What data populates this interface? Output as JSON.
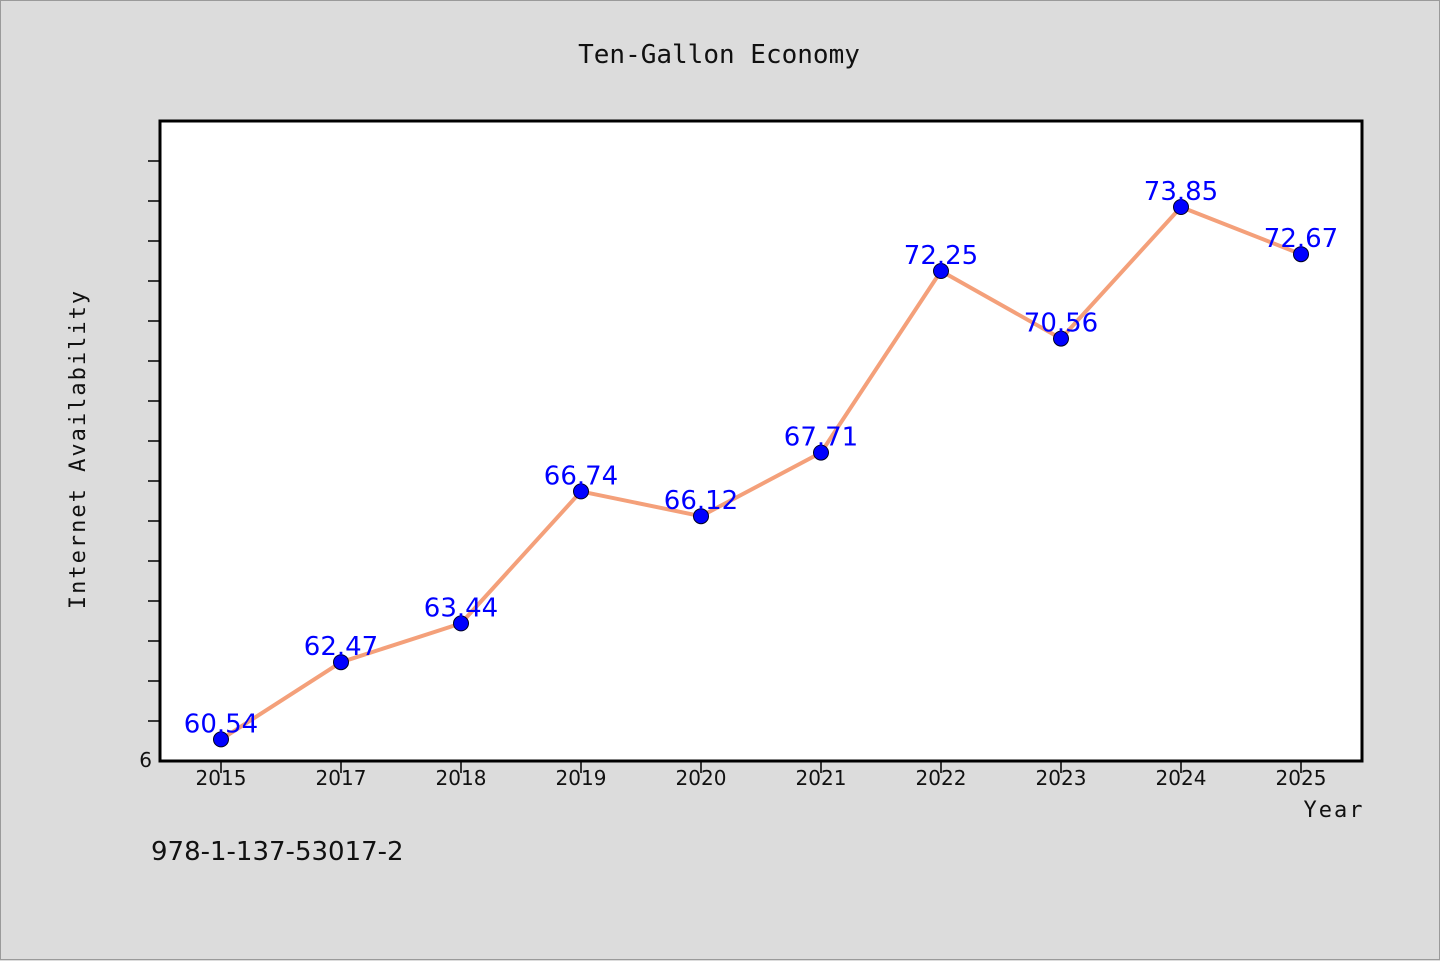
{
  "chart_data": {
    "type": "line",
    "title": "Ten-Gallon Economy",
    "xlabel": "Year",
    "ylabel": "Internet Availability",
    "categories": [
      "2015",
      "2017",
      "2018",
      "2019",
      "2020",
      "2021",
      "2022",
      "2023",
      "2024",
      "2025"
    ],
    "series": [
      {
        "values": [
          60.54,
          62.47,
          63.44,
          66.74,
          66.12,
          67.71,
          72.25,
          70.56,
          73.85,
          72.67
        ],
        "data_labels": [
          "60.54",
          "62.47",
          "63.44",
          "66.74",
          "66.12",
          "67.71",
          "72.25",
          "70.56",
          "73.85",
          "72.67"
        ]
      }
    ],
    "y_tick_labels": [
      "6"
    ],
    "ylim": [
      60,
      76
    ],
    "grid": false,
    "colors": {
      "line": "#f4a07a",
      "marker": "#0000ff",
      "data_label": "#0000ff",
      "plot_background": "#ffffff",
      "figure_background": "#dcdcdc"
    }
  },
  "footer": {
    "isbn": "978-1-137-53017-2"
  }
}
